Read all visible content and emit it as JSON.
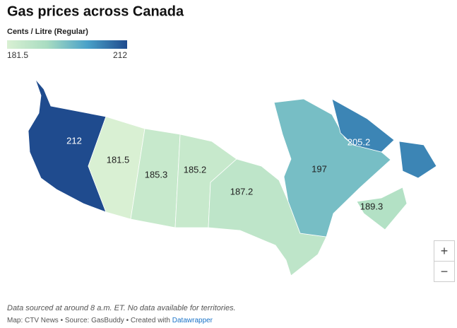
{
  "chart_data": {
    "type": "map",
    "title": "Gas prices across Canada",
    "legend": {
      "title": "Cents / Litre (Regular)",
      "range": [
        181.5,
        212
      ]
    },
    "colors": [
      "#d9f0d3",
      "#a8dcc1",
      "#4aa2c9",
      "#1f4b8e"
    ],
    "values": [
      212,
      181.5,
      185.3,
      185.2,
      187.2,
      197,
      205.2,
      189.3
    ],
    "note": "Data sourced at around 8 a.m. ET. No data available for territories.",
    "source": "Map: CTV News • Source: GasBuddy • Created with",
    "credit": "Datawrapper"
  },
  "controls": [
    "+",
    "−"
  ]
}
